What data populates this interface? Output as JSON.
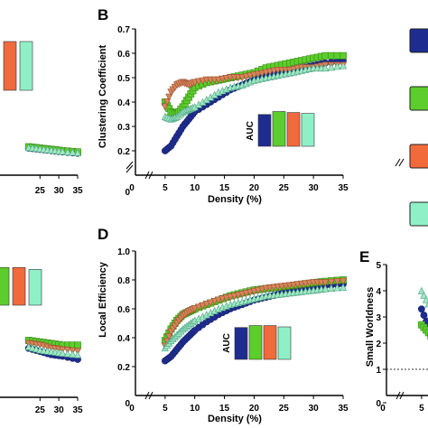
{
  "colors": {
    "navy": "#1f2c8f",
    "green": "#5ccd2c",
    "orange": "#f06a3c",
    "mint": "#8ff0c8",
    "tan": "#d8845a",
    "seafoam": "#9fe8c4",
    "axis": "#000000"
  },
  "chart_data": [
    {
      "panel": "",
      "type": "line",
      "xlabel": "",
      "ylabel": "",
      "x_ticks": [
        "25",
        "30",
        "35"
      ],
      "inset_bars": {
        "values": [
          0.36,
          0.36
        ]
      },
      "series": [
        {
          "values": [
            [
              22,
              0.21
            ],
            [
              25,
              0.2
            ],
            [
              28,
              0.19
            ],
            [
              31,
              0.18
            ],
            [
              35,
              0.17
            ]
          ]
        },
        {
          "values": [
            [
              22,
              0.22
            ],
            [
              25,
              0.21
            ],
            [
              28,
              0.2
            ],
            [
              31,
              0.19
            ],
            [
              35,
              0.18
            ]
          ]
        },
        {
          "values": [
            [
              22,
              0.215
            ],
            [
              25,
              0.205
            ],
            [
              28,
              0.195
            ],
            [
              31,
              0.185
            ],
            [
              35,
              0.175
            ]
          ]
        }
      ]
    },
    {
      "panel": "B",
      "type": "scatter",
      "xlabel": "Density (%)",
      "ylabel": "Clustering Coefficient",
      "x_ticks": [
        "0",
        "5",
        "10",
        "15",
        "20",
        "25",
        "30",
        "35"
      ],
      "y_ticks": [
        "0",
        "0.2",
        "0.3",
        "0.4",
        "0.5",
        "0.6",
        "0.7"
      ],
      "xlim": [
        0,
        35
      ],
      "ylim": [
        0,
        0.7
      ],
      "inset_bars": {
        "label": "AUC",
        "values": [
          0.32,
          0.35,
          0.34,
          0.33
        ]
      },
      "series": [
        {
          "values": [
            [
              5,
              0.2
            ],
            [
              6,
              0.22
            ],
            [
              7,
              0.26
            ],
            [
              8,
              0.3
            ],
            [
              9,
              0.33
            ],
            [
              10,
              0.36
            ],
            [
              12,
              0.39
            ],
            [
              14,
              0.42
            ],
            [
              16,
              0.45
            ],
            [
              18,
              0.47
            ],
            [
              20,
              0.49
            ],
            [
              22,
              0.51
            ],
            [
              24,
              0.52
            ],
            [
              26,
              0.53
            ],
            [
              28,
              0.54
            ],
            [
              30,
              0.55
            ],
            [
              32,
              0.56
            ],
            [
              35,
              0.57
            ]
          ]
        },
        {
          "values": [
            [
              5,
              0.4
            ],
            [
              6,
              0.36
            ],
            [
              7,
              0.35
            ],
            [
              8,
              0.38
            ],
            [
              9,
              0.42
            ],
            [
              10,
              0.46
            ],
            [
              12,
              0.48
            ],
            [
              14,
              0.49
            ],
            [
              16,
              0.5
            ],
            [
              18,
              0.51
            ],
            [
              20,
              0.52
            ],
            [
              22,
              0.54
            ],
            [
              24,
              0.55
            ],
            [
              26,
              0.56
            ],
            [
              28,
              0.57
            ],
            [
              30,
              0.58
            ],
            [
              32,
              0.59
            ],
            [
              35,
              0.59
            ]
          ]
        },
        {
          "values": [
            [
              5,
              0.38
            ],
            [
              6,
              0.44
            ],
            [
              7,
              0.47
            ],
            [
              8,
              0.48
            ],
            [
              9,
              0.47
            ],
            [
              10,
              0.48
            ],
            [
              12,
              0.49
            ],
            [
              14,
              0.49
            ],
            [
              16,
              0.5
            ],
            [
              18,
              0.5
            ],
            [
              20,
              0.51
            ],
            [
              22,
              0.52
            ],
            [
              24,
              0.53
            ],
            [
              26,
              0.53
            ],
            [
              28,
              0.54
            ],
            [
              30,
              0.54
            ],
            [
              32,
              0.55
            ],
            [
              35,
              0.55
            ]
          ]
        },
        {
          "values": [
            [
              5,
              0.34
            ],
            [
              6,
              0.33
            ],
            [
              7,
              0.34
            ],
            [
              8,
              0.36
            ],
            [
              9,
              0.37
            ],
            [
              10,
              0.38
            ],
            [
              12,
              0.41
            ],
            [
              14,
              0.44
            ],
            [
              16,
              0.46
            ],
            [
              18,
              0.47
            ],
            [
              20,
              0.49
            ],
            [
              22,
              0.5
            ],
            [
              24,
              0.51
            ],
            [
              26,
              0.52
            ],
            [
              28,
              0.53
            ],
            [
              30,
              0.54
            ],
            [
              32,
              0.54
            ],
            [
              35,
              0.55
            ]
          ]
        }
      ]
    },
    {
      "panel": "",
      "type": "line",
      "xlabel": "",
      "ylabel": "",
      "x_ticks": [
        "25",
        "30",
        "35"
      ],
      "inset_bars": {
        "values": [
          0.38,
          0.38,
          0.36
        ]
      },
      "series": [
        {
          "values": [
            [
              22,
              0.31
            ],
            [
              25,
              0.29
            ],
            [
              28,
              0.27
            ],
            [
              31,
              0.26
            ],
            [
              35,
              0.24
            ]
          ]
        },
        {
          "values": [
            [
              22,
              0.36
            ],
            [
              25,
              0.35
            ],
            [
              28,
              0.34
            ],
            [
              31,
              0.33
            ],
            [
              35,
              0.33
            ]
          ]
        },
        {
          "values": [
            [
              22,
              0.34
            ],
            [
              25,
              0.33
            ],
            [
              28,
              0.31
            ],
            [
              31,
              0.3
            ],
            [
              35,
              0.29
            ]
          ]
        },
        {
          "values": [
            [
              22,
              0.32
            ],
            [
              25,
              0.3
            ],
            [
              28,
              0.29
            ],
            [
              31,
              0.28
            ],
            [
              35,
              0.27
            ]
          ]
        }
      ]
    },
    {
      "panel": "D",
      "type": "scatter",
      "xlabel": "Density (%)",
      "ylabel": "Local Efficiency",
      "x_ticks": [
        "0",
        "5",
        "10",
        "15",
        "20",
        "25",
        "30",
        "35"
      ],
      "y_ticks": [
        "0",
        "0.2",
        "0.4",
        "0.6",
        "0.8",
        "1.0"
      ],
      "xlim": [
        0,
        35
      ],
      "ylim": [
        0,
        1.0
      ],
      "inset_bars": {
        "label": "AUC",
        "values": [
          0.49,
          0.52,
          0.52,
          0.5
        ]
      },
      "series": [
        {
          "values": [
            [
              5,
              0.24
            ],
            [
              6,
              0.27
            ],
            [
              7,
              0.32
            ],
            [
              8,
              0.37
            ],
            [
              9,
              0.41
            ],
            [
              10,
              0.45
            ],
            [
              12,
              0.51
            ],
            [
              14,
              0.56
            ],
            [
              16,
              0.6
            ],
            [
              18,
              0.63
            ],
            [
              20,
              0.66
            ],
            [
              22,
              0.68
            ],
            [
              24,
              0.7
            ],
            [
              26,
              0.72
            ],
            [
              28,
              0.74
            ],
            [
              30,
              0.75
            ],
            [
              32,
              0.76
            ],
            [
              35,
              0.77
            ]
          ]
        },
        {
          "values": [
            [
              5,
              0.38
            ],
            [
              6,
              0.46
            ],
            [
              7,
              0.52
            ],
            [
              8,
              0.56
            ],
            [
              9,
              0.58
            ],
            [
              10,
              0.6
            ],
            [
              12,
              0.63
            ],
            [
              14,
              0.66
            ],
            [
              16,
              0.69
            ],
            [
              18,
              0.71
            ],
            [
              20,
              0.73
            ],
            [
              22,
              0.74
            ],
            [
              24,
              0.75
            ],
            [
              26,
              0.76
            ],
            [
              28,
              0.77
            ],
            [
              30,
              0.78
            ],
            [
              32,
              0.79
            ],
            [
              35,
              0.8
            ]
          ]
        },
        {
          "values": [
            [
              5,
              0.34
            ],
            [
              6,
              0.44
            ],
            [
              7,
              0.5
            ],
            [
              8,
              0.55
            ],
            [
              9,
              0.58
            ],
            [
              10,
              0.6
            ],
            [
              12,
              0.63
            ],
            [
              14,
              0.66
            ],
            [
              16,
              0.68
            ],
            [
              18,
              0.7
            ],
            [
              20,
              0.72
            ],
            [
              22,
              0.74
            ],
            [
              24,
              0.75
            ],
            [
              26,
              0.76
            ],
            [
              28,
              0.77
            ],
            [
              30,
              0.78
            ],
            [
              32,
              0.78
            ],
            [
              35,
              0.79
            ]
          ]
        },
        {
          "values": [
            [
              5,
              0.33
            ],
            [
              6,
              0.38
            ],
            [
              7,
              0.42
            ],
            [
              8,
              0.46
            ],
            [
              9,
              0.49
            ],
            [
              10,
              0.52
            ],
            [
              12,
              0.56
            ],
            [
              14,
              0.6
            ],
            [
              16,
              0.63
            ],
            [
              18,
              0.65
            ],
            [
              20,
              0.67
            ],
            [
              22,
              0.69
            ],
            [
              24,
              0.7
            ],
            [
              26,
              0.71
            ],
            [
              28,
              0.72
            ],
            [
              30,
              0.73
            ],
            [
              32,
              0.74
            ],
            [
              35,
              0.75
            ]
          ]
        }
      ]
    },
    {
      "panel": "E",
      "type": "scatter",
      "xlabel": "",
      "ylabel": "Small Worldness",
      "x_ticks": [
        "0",
        "5"
      ],
      "y_ticks": [
        "0",
        "1",
        "2",
        "3",
        "4",
        "5"
      ],
      "ylim": [
        0,
        5
      ],
      "series": [
        {
          "values": [
            [
              5,
              3.3
            ],
            [
              6,
              2.6
            ],
            [
              7,
              2.1
            ],
            [
              8,
              1.7
            ],
            [
              9,
              1.5
            ]
          ]
        },
        {
          "values": [
            [
              5,
              2.7
            ],
            [
              6,
              2.4
            ],
            [
              7,
              2.0
            ],
            [
              8,
              1.8
            ],
            [
              9,
              1.6
            ]
          ]
        },
        {
          "values": [
            [
              5,
              4.0
            ],
            [
              6,
              3.5
            ],
            [
              7,
              2.3
            ],
            [
              8,
              1.9
            ],
            [
              9,
              1.7
            ]
          ]
        }
      ]
    }
  ],
  "legend_swatches": [
    "navy",
    "green",
    "orange",
    "mint"
  ]
}
